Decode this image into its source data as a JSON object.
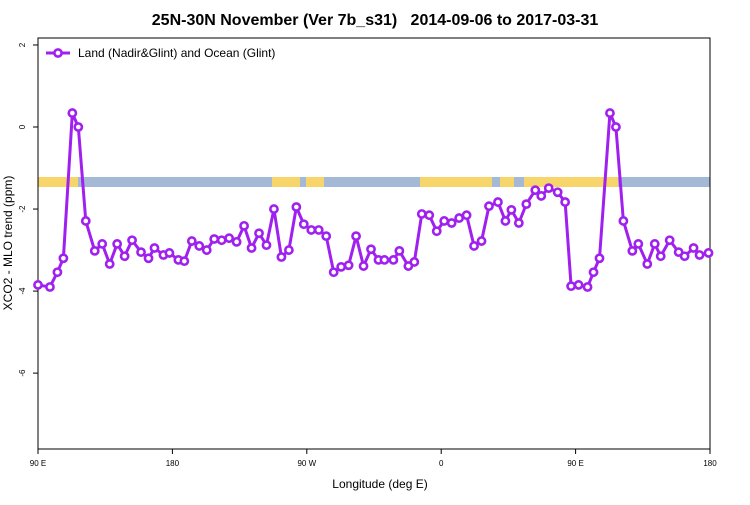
{
  "chart_data": {
    "type": "line",
    "title": "25N-30N November (Ver 7b_s31)   2014-09-06 to 2017-03-31",
    "xlabel": "Longitude (deg E)",
    "ylabel": "XCO2 - MLO trend (ppm)",
    "x": [
      90,
      98,
      103,
      107,
      113,
      117,
      122,
      128,
      133,
      138,
      143,
      148,
      153,
      159,
      164,
      168,
      174,
      178,
      184,
      188,
      193,
      198,
      203,
      208,
      213,
      218,
      223,
      228,
      233,
      238,
      243,
      248,
      253,
      258,
      263,
      268,
      273,
      278,
      283,
      288,
      293,
      298,
      303,
      308,
      313,
      318,
      322,
      328,
      332,
      338,
      342,
      347,
      352,
      357,
      362,
      367,
      372,
      377,
      382,
      387,
      392,
      398,
      403,
      407,
      412,
      417,
      423,
      427,
      432,
      438,
      443,
      447,
      452,
      458,
      462,
      466,
      473,
      477,
      482,
      488,
      492,
      498,
      503,
      507,
      513,
      519,
      523,
      529,
      533,
      539
    ],
    "series": [
      {
        "name": "Land (Nadir&Glint) and Ocean (Glint)",
        "color": "#a020f0",
        "values": [
          -3.85,
          -3.9,
          -3.54,
          -3.2,
          0.34,
          0,
          -2.29,
          -3.02,
          -2.85,
          -3.34,
          -2.85,
          -3.15,
          -2.76,
          -3.05,
          -3.2,
          -2.95,
          -3.12,
          -3.07,
          -3.24,
          -3.27,
          -2.78,
          -2.9,
          -3.0,
          -2.73,
          -2.76,
          -2.71,
          -2.8,
          -2.41,
          -2.95,
          -2.59,
          -2.88,
          -2.0,
          -3.17,
          -3.0,
          -1.95,
          -2.37,
          -2.51,
          -2.51,
          -2.66,
          -3.54,
          -3.41,
          -3.37,
          -2.66,
          -3.39,
          -2.98,
          -3.24,
          -3.24,
          -3.24,
          -3.02,
          -3.39,
          -3.29,
          -2.12,
          -2.15,
          -2.54,
          -2.29,
          -2.34,
          -2.22,
          -2.15,
          -2.9,
          -2.78,
          -1.93,
          -1.83,
          -2.29,
          -2.02,
          -2.34,
          -1.88,
          -1.54,
          -1.68,
          -1.49,
          -1.59,
          -1.83,
          -3.88,
          -3.85,
          -3.9,
          -3.54,
          -3.2,
          0.34,
          0,
          -2.29,
          -3.02,
          -2.85,
          -3.34,
          -2.85,
          -3.15,
          -2.76,
          -3.05,
          -3.15,
          -2.95,
          -3.12,
          -3.07
        ]
      }
    ],
    "xlim": [
      90,
      540
    ],
    "xticks": [
      {
        "value": 90,
        "label": "90 E"
      },
      180,
      {
        "value": 270,
        "label": "90 W"
      },
      {
        "value": 360,
        "label": "0"
      },
      {
        "value": 450,
        "label": "90 E"
      },
      {
        "value": 540,
        "label": "180"
      }
    ],
    "ylim": [
      -7.85,
      2.17
    ],
    "yticks": [
      2,
      0,
      -2,
      -4,
      -6
    ],
    "legend": "top-left"
  }
}
